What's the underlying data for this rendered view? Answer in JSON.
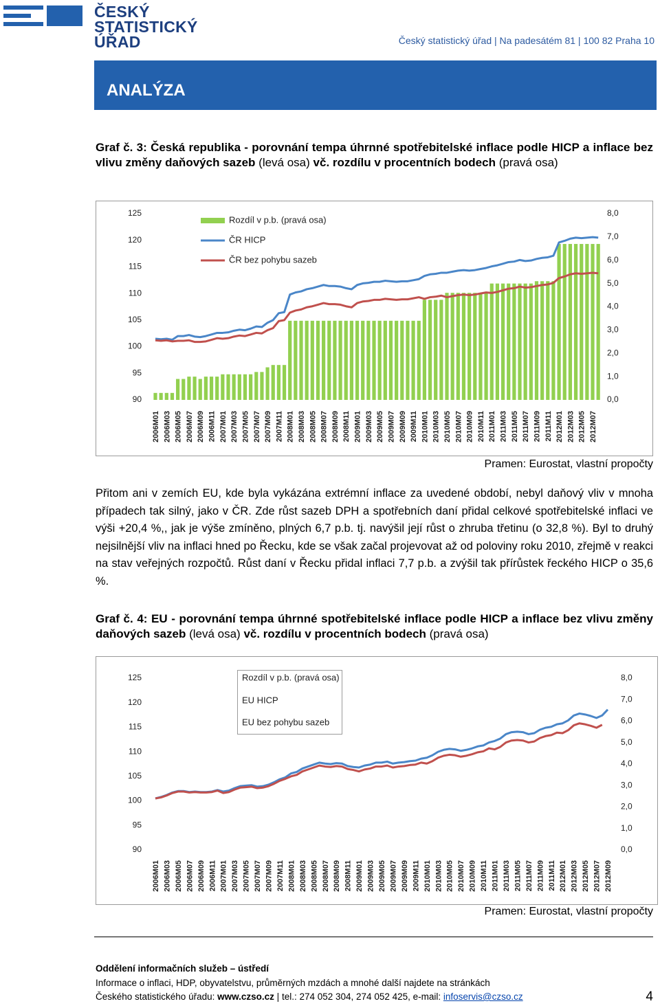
{
  "header": {
    "logo": [
      "ČESKÝ",
      "STATISTICKÝ",
      "ÚŘAD"
    ],
    "address": "Český statistický úřad | Na padesátém 81 | 100 82 Praha 10"
  },
  "section": "ANALÝZA",
  "figures": [
    {
      "caption": [
        "Graf č. 3: Česká republika - porovnání tempa úhrnné spotřebitelské inflace podle HICP a inflace bez vlivu změny daňových sazeb",
        "(levá osa)",
        "vč. rozdílu v procentních bodech",
        "(pravá osa)"
      ],
      "source": "Pramen: Eurostat, vlastní propočty"
    },
    {
      "caption": [
        "Graf č. 4: EU - porovnání tempa úhrnné spotřebitelské inflace podle HICP a inflace bez vlivu změny daňových sazeb",
        "(levá osa)",
        "vč. rozdílu v procentních bodech",
        "(pravá osa)"
      ],
      "source": "Pramen: Eurostat, vlastní propočty"
    }
  ],
  "paragraph": "Přitom ani v zemích EU, kde byla vykázána extrémní inflace za uvedené období, nebyl daňový vliv v mnoha případech tak silný, jako v ČR. Zde růst sazeb DPH a spotřebních daní přidal celkové spotřebitelské inflaci ve výši +20,4 %,, jak je výše zmíněno, plných 6,7 p.b. tj. navýšil její růst o zhruba třetinu (o 32,8 %). Byl to druhý nejsilnější vliv na inflaci hned po Řecku, kde se však začal projevovat až od poloviny roku 2010, zřejmě v reakci na stav veřejných rozpočtů. Růst daní v Řecku přidal inflaci 7,7 p.b. a zvýšil tak přírůstek řeckého HICP o 35,6 %.",
  "footer": {
    "department": "Oddělení informačních služeb – ústředí",
    "line1": "Informace o inflaci, HDP, obyvatelstvu, průměrných mzdách a mnohé další najdete na stránkách",
    "line2": [
      "Českého statistického úřadu:",
      "www.czso.cz",
      "|",
      "tel.: 274 052 304, 274 052 425, e-mail:",
      "infoservis@czso.cz"
    ],
    "page": "4"
  },
  "chart_data": [
    {
      "type": "combo",
      "categories": [
        "2006M01",
        null,
        "2006M03",
        null,
        "2006M05",
        null,
        "2006M07",
        null,
        "2006M09",
        null,
        "2006M11",
        null,
        "2007M01",
        null,
        "2007M03",
        null,
        "2007M05",
        null,
        "2007M07",
        null,
        "2007M09",
        null,
        "2007M11",
        null,
        "2008M01",
        null,
        "2008M03",
        null,
        "2008M05",
        null,
        "2008M07",
        null,
        "2008M09",
        null,
        "2008M11",
        null,
        "2009M01",
        null,
        "2009M03",
        null,
        "2009M05",
        null,
        "2009M07",
        null,
        "2009M09",
        null,
        "2009M11",
        null,
        "2010M01",
        null,
        "2010M03",
        null,
        "2010M05",
        null,
        "2010M07",
        null,
        "2010M09",
        null,
        "2010M11",
        null,
        "2011M01",
        null,
        "2011M03",
        null,
        "2011M05",
        null,
        "2011M07",
        null,
        "2011M09",
        null,
        "2011M11",
        null,
        "2012M01",
        null,
        "2012M03",
        null,
        "2012M05",
        null,
        "2012M07",
        null
      ],
      "ylim": [
        90,
        125
      ],
      "yticks": [
        125,
        120,
        115,
        110,
        105,
        100,
        95,
        90
      ],
      "y2lim": [
        0,
        8
      ],
      "y2ticks": [
        {
          "value": 8,
          "label": "8,0"
        },
        {
          "value": 7,
          "label": "7,0"
        },
        {
          "value": 6,
          "label": "6,0"
        },
        {
          "value": 5,
          "label": "5,0"
        },
        {
          "value": 4,
          "label": "4,0"
        },
        {
          "value": 3,
          "label": "3,0"
        },
        {
          "value": 2,
          "label": "2,0"
        },
        {
          "value": 1,
          "label": "1,0"
        },
        {
          "value": 0,
          "label": "0,0"
        }
      ],
      "series": [
        {
          "name": "Rozdíl v p.b. (pravá osa)",
          "type": "bar",
          "axis": "y2",
          "color": "#92d050",
          "values": [
            0.3,
            0.3,
            0.3,
            0.3,
            0.9,
            0.9,
            1.0,
            1.0,
            0.9,
            1.0,
            1.0,
            1.0,
            1.1,
            1.1,
            1.1,
            1.1,
            1.1,
            1.1,
            1.2,
            1.2,
            1.4,
            1.5,
            1.5,
            1.5,
            3.4,
            3.4,
            3.4,
            3.4,
            3.4,
            3.4,
            3.4,
            3.4,
            3.4,
            3.4,
            3.4,
            3.4,
            3.4,
            3.4,
            3.4,
            3.4,
            3.4,
            3.4,
            3.4,
            3.4,
            3.4,
            3.4,
            3.4,
            3.4,
            4.3,
            4.3,
            4.3,
            4.3,
            4.6,
            4.6,
            4.6,
            4.6,
            4.6,
            4.6,
            4.6,
            4.6,
            5.0,
            5.0,
            5.0,
            5.0,
            5.0,
            5.0,
            5.0,
            5.0,
            5.1,
            5.1,
            5.1,
            5.1,
            6.7,
            6.7,
            6.7,
            6.7,
            6.7,
            6.7,
            6.7,
            6.7
          ]
        },
        {
          "name": "ČR HICP",
          "type": "line",
          "color": "#4a86c8",
          "values": [
            101.5,
            101.4,
            101.5,
            101.3,
            102.0,
            102.0,
            102.2,
            101.9,
            101.8,
            102.0,
            102.3,
            102.6,
            102.6,
            102.7,
            103.0,
            103.2,
            103.1,
            103.4,
            103.8,
            103.7,
            104.5,
            105.0,
            106.3,
            106.5,
            109.8,
            110.2,
            110.4,
            110.8,
            111.0,
            111.3,
            111.6,
            111.4,
            111.4,
            111.3,
            111.0,
            110.8,
            111.6,
            111.9,
            112.0,
            112.2,
            112.2,
            112.4,
            112.3,
            112.2,
            112.3,
            112.3,
            112.5,
            112.7,
            113.3,
            113.6,
            113.7,
            113.9,
            113.9,
            114.1,
            114.3,
            114.4,
            114.3,
            114.4,
            114.6,
            114.8,
            115.1,
            115.3,
            115.6,
            115.9,
            116.0,
            116.3,
            116.1,
            116.2,
            116.5,
            116.7,
            116.8,
            117.1,
            119.6,
            119.9,
            120.3,
            120.5,
            120.4,
            120.5,
            120.6,
            120.5
          ]
        },
        {
          "name": "ČR bez pohybu sazeb",
          "type": "line",
          "color": "#c0504d",
          "values": [
            101.2,
            101.1,
            101.2,
            101.0,
            101.1,
            101.1,
            101.2,
            100.9,
            100.9,
            101.0,
            101.3,
            101.6,
            101.5,
            101.6,
            101.9,
            102.1,
            102.0,
            102.3,
            102.6,
            102.5,
            103.1,
            103.5,
            104.8,
            105.0,
            106.4,
            106.8,
            107.0,
            107.4,
            107.6,
            107.9,
            108.2,
            108.0,
            108.0,
            107.9,
            107.6,
            107.4,
            108.2,
            108.5,
            108.6,
            108.8,
            108.8,
            109.0,
            108.9,
            108.8,
            108.9,
            108.9,
            109.1,
            109.3,
            109.0,
            109.3,
            109.4,
            109.6,
            109.3,
            109.5,
            109.7,
            109.8,
            109.7,
            109.8,
            110.0,
            110.2,
            110.1,
            110.3,
            110.6,
            110.9,
            111.0,
            111.3,
            111.1,
            111.2,
            111.4,
            111.6,
            111.7,
            112.0,
            112.9,
            113.2,
            113.6,
            113.8,
            113.7,
            113.8,
            113.9,
            113.8
          ]
        }
      ]
    },
    {
      "type": "combo",
      "categories": [
        "2006M01",
        null,
        "2006M03",
        null,
        "2006M05",
        null,
        "2006M07",
        null,
        "2006M09",
        null,
        "2006M11",
        null,
        "2007M01",
        null,
        "2007M03",
        null,
        "2007M05",
        null,
        "2007M07",
        null,
        "2007M09",
        null,
        "2007M11",
        null,
        "2008M01",
        null,
        "2008M03",
        null,
        "2008M05",
        null,
        "2008M07",
        null,
        "2008M09",
        null,
        "2008M11",
        null,
        "2009M01",
        null,
        "2009M03",
        null,
        "2009M05",
        null,
        "2009M07",
        null,
        "2009M09",
        null,
        "2009M11",
        null,
        "2010M01",
        null,
        "2010M03",
        null,
        "2010M05",
        null,
        "2010M07",
        null,
        "2010M09",
        null,
        "2010M11",
        null,
        "2011M01",
        null,
        "2011M03",
        null,
        "2011M05",
        null,
        "2011M07",
        null,
        "2011M09",
        null,
        "2011M11",
        null,
        "2012M01",
        null,
        "2012M03",
        null,
        "2012M05",
        null,
        "2012M07",
        null,
        "2012M09"
      ],
      "ylim": [
        90,
        125
      ],
      "yticks": [
        125,
        120,
        115,
        110,
        105,
        100,
        95,
        90
      ],
      "y2lim": [
        0,
        8
      ],
      "y2ticks": [
        {
          "value": 8,
          "label": "8,0"
        },
        {
          "value": 7,
          "label": "7,0"
        },
        {
          "value": 6,
          "label": "6,0"
        },
        {
          "value": 5,
          "label": "5,0"
        },
        {
          "value": 4,
          "label": "4,0"
        },
        {
          "value": 3,
          "label": "3,0"
        },
        {
          "value": 2,
          "label": "2,0"
        },
        {
          "value": 1,
          "label": "1,0"
        },
        {
          "value": 0,
          "label": "0,0"
        }
      ],
      "series": [
        {
          "name": "Rozdíl v p.b. (pravá osa)",
          "type": "bar",
          "axis": "y2",
          "color": "#92d050"
        },
        {
          "name": "EU HICP",
          "type": "line",
          "color": "#4a86c8",
          "values": [
            100.5,
            100.8,
            101.2,
            101.7,
            102.0,
            102.0,
            101.8,
            101.9,
            101.8,
            101.8,
            101.9,
            102.2,
            101.9,
            102.1,
            102.6,
            103.0,
            103.1,
            103.2,
            102.9,
            103.0,
            103.3,
            103.8,
            104.4,
            104.8,
            105.6,
            105.9,
            106.6,
            107.0,
            107.4,
            107.8,
            107.6,
            107.5,
            107.7,
            107.6,
            107.1,
            106.9,
            106.8,
            107.2,
            107.4,
            107.8,
            107.8,
            108.0,
            107.6,
            107.8,
            107.9,
            108.1,
            108.2,
            108.6,
            108.8,
            109.3,
            110.0,
            110.4,
            110.6,
            110.5,
            110.2,
            110.4,
            110.7,
            111.1,
            111.3,
            111.9,
            112.2,
            112.7,
            113.6,
            114.0,
            114.1,
            114.0,
            113.6,
            113.8,
            114.5,
            114.9,
            115.1,
            115.6,
            115.8,
            116.4,
            117.4,
            117.8,
            117.6,
            117.3,
            116.9,
            117.4,
            118.6
          ]
        },
        {
          "name": "EU bez pohybu sazeb",
          "type": "line",
          "color": "#c0504d",
          "values": [
            100.5,
            100.7,
            101.1,
            101.6,
            101.9,
            101.9,
            101.7,
            101.8,
            101.7,
            101.7,
            101.8,
            102.1,
            101.6,
            101.8,
            102.3,
            102.7,
            102.8,
            102.9,
            102.6,
            102.7,
            103.0,
            103.5,
            104.1,
            104.5,
            105.0,
            105.3,
            106.0,
            106.4,
            106.8,
            107.2,
            107.0,
            106.9,
            107.1,
            107.0,
            106.5,
            106.3,
            106.0,
            106.4,
            106.6,
            107.0,
            107.0,
            107.2,
            106.8,
            107.0,
            107.1,
            107.3,
            107.4,
            107.8,
            107.6,
            108.1,
            108.8,
            109.2,
            109.4,
            109.3,
            109.0,
            109.2,
            109.5,
            109.9,
            110.1,
            110.7,
            110.5,
            111.0,
            111.9,
            112.3,
            112.4,
            112.3,
            111.9,
            112.1,
            112.8,
            113.2,
            113.4,
            113.9,
            113.8,
            114.4,
            115.4,
            115.8,
            115.6,
            115.3,
            114.9,
            115.5,
            null
          ]
        }
      ]
    }
  ]
}
